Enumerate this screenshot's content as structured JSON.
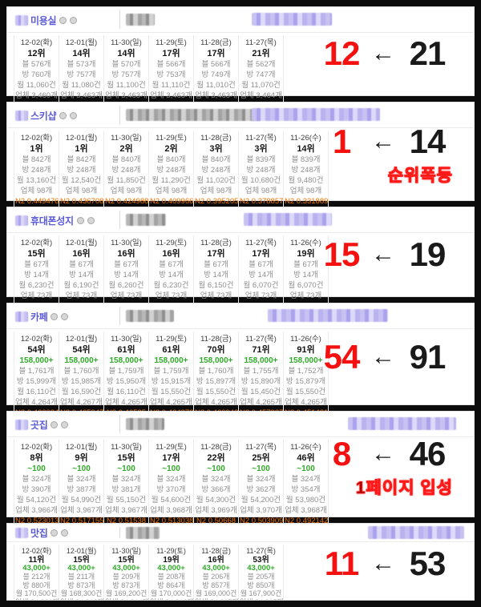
{
  "ui": {
    "arrow_icon": "←",
    "red_color": "#f61111",
    "green_color": "#2fab28",
    "n2_color": "#ef7400",
    "title_color": "#5a5ad9"
  },
  "panels": [
    {
      "title": "미용실",
      "change": {
        "current": "12",
        "previous": "21"
      },
      "note": "",
      "columns": [
        {
          "date": "12-02(화)",
          "rank": "12위",
          "green": "",
          "blog": "블 576개",
          "visitors": "방 760개",
          "monthly": "월 11,060건",
          "companies": "업체 3,460개",
          "n2": "N2 0.426561"
        },
        {
          "date": "12-01(월)",
          "rank": "14위",
          "green": "",
          "blog": "블 573개",
          "visitors": "방 757개",
          "monthly": "월 11,080건",
          "companies": "업체 3,463개",
          "n2": "N2 0.42376"
        },
        {
          "date": "11-30(일)",
          "rank": "14위",
          "green": "",
          "blog": "블 570개",
          "visitors": "방 757개",
          "monthly": "월 11,100건",
          "companies": "업체 3,463개",
          "n2": "N2 0.420637"
        },
        {
          "date": "11-29(토)",
          "rank": "17위",
          "green": "",
          "blog": "블 566개",
          "visitors": "방 753개",
          "monthly": "월 11,110건",
          "companies": "업체 3,463개",
          "n2": "N2 0.416144"
        },
        {
          "date": "11-28(금)",
          "rank": "17위",
          "green": "",
          "blog": "블 566개",
          "visitors": "방 749개",
          "monthly": "월 11,010건",
          "companies": "업체 3,463개",
          "n2": "N2 0.412754"
        },
        {
          "date": "11-27(목)",
          "rank": "21위",
          "green": "",
          "blog": "블 562개",
          "visitors": "방 747개",
          "monthly": "월 11,070건",
          "companies": "업체 3,464개",
          "n2": "N2 0.405847"
        }
      ]
    },
    {
      "title": "스키샵",
      "change": {
        "current": "1",
        "previous": "14"
      },
      "note": "순위폭등",
      "columns": [
        {
          "date": "12-02(화)",
          "rank": "1위",
          "green": "",
          "blog": "블 842개",
          "visitors": "방 248개",
          "monthly": "월 13,160건",
          "companies": "업체 98개",
          "n2": "N2 0.449476"
        },
        {
          "date": "12-01(월)",
          "rank": "1위",
          "green": "",
          "blog": "블 842개",
          "visitors": "방 248개",
          "monthly": "월 12,540건",
          "companies": "업체 98개",
          "n2": "N2 0.436708"
        },
        {
          "date": "11-30(일)",
          "rank": "2위",
          "green": "",
          "blog": "블 840개",
          "visitors": "방 248개",
          "monthly": "월 11,850건",
          "companies": "업체 98개",
          "n2": "N2 0.424988"
        },
        {
          "date": "11-29(토)",
          "rank": "2위",
          "green": "",
          "blog": "블 840개",
          "visitors": "방 248개",
          "monthly": "월 11,290건",
          "companies": "업체 98개",
          "n2": "N2 0.409966"
        },
        {
          "date": "11-28(금)",
          "rank": "3위",
          "green": "",
          "blog": "블 840개",
          "visitors": "방 248개",
          "monthly": "월 11,020건",
          "companies": "업체 98개",
          "n2": "N2 0.395205"
        },
        {
          "date": "11-27(목)",
          "rank": "3위",
          "green": "",
          "blog": "블 839개",
          "visitors": "방 248개",
          "monthly": "월 10,680건",
          "companies": "업체 98개",
          "n2": "N2 0.378857"
        },
        {
          "date": "11-26(수)",
          "rank": "14위",
          "green": "",
          "blog": "블 839개",
          "visitors": "방 248개",
          "monthly": "월 9,480건",
          "companies": "업체 98개",
          "n2": "N2 0.331889"
        }
      ]
    },
    {
      "title": "휴대폰성지",
      "change": {
        "current": "15",
        "previous": "19"
      },
      "note": "",
      "columns": [
        {
          "date": "12-02(화)",
          "rank": "15위",
          "green": "",
          "blog": "블 67개",
          "visitors": "방 14개",
          "monthly": "월 6,230건",
          "companies": "업체 73개",
          "n2": "N2 0.225253"
        },
        {
          "date": "12-01(월)",
          "rank": "16위",
          "green": "",
          "blog": "블 67개",
          "visitors": "방 14개",
          "monthly": "월 6,190건",
          "companies": "업체 73개",
          "n2": "N2 0.219472"
        },
        {
          "date": "11-30(일)",
          "rank": "16위",
          "green": "",
          "blog": "블 67개",
          "visitors": "방 14개",
          "monthly": "월 6,260건",
          "companies": "업체 73개",
          "n2": "N2 0.219472"
        },
        {
          "date": "11-29(토)",
          "rank": "16위",
          "green": "",
          "blog": "블 67개",
          "visitors": "방 14개",
          "monthly": "월 6,230건",
          "companies": "업체 73개",
          "n2": "N2 0.222271"
        },
        {
          "date": "11-28(금)",
          "rank": "17위",
          "green": "",
          "blog": "블 67개",
          "visitors": "방 14개",
          "monthly": "월 6,150건",
          "companies": "업체 73개",
          "n2": "N2 0.222239"
        },
        {
          "date": "11-27(목)",
          "rank": "17위",
          "green": "",
          "blog": "블 67개",
          "visitors": "방 14개",
          "monthly": "월 6,070건",
          "companies": "업체 73개",
          "n2": "N2 0.221428"
        },
        {
          "date": "11-26(수)",
          "rank": "19위",
          "green": "",
          "blog": "블 67개",
          "visitors": "방 14개",
          "monthly": "월 6,070건",
          "companies": "업체 73개",
          "n2": "N2 0.220964"
        }
      ]
    },
    {
      "title": "카페",
      "change": {
        "current": "54",
        "previous": "91"
      },
      "note": "",
      "columns": [
        {
          "date": "12-02(화)",
          "rank": "54위",
          "green": "158,000+",
          "blog": "블 1,761개",
          "visitors": "방 15,999개",
          "monthly": "월 16,110건",
          "companies": "업체 4,264개",
          "n2": "N2 0.466094"
        },
        {
          "date": "12-01(월)",
          "rank": "54위",
          "green": "158,000+",
          "blog": "블 1,760개",
          "visitors": "방 15,985개",
          "monthly": "월 16,590건",
          "companies": "업체 4,267개",
          "n2": "N2 0.465947"
        },
        {
          "date": "11-30(일)",
          "rank": "61위",
          "green": "158,000+",
          "blog": "블 1,759개",
          "visitors": "방 15,950개",
          "monthly": "월 16,110건",
          "companies": "업체 4,265개",
          "n2": "N2 0.46525"
        },
        {
          "date": "11-29(토)",
          "rank": "61위",
          "green": "158,000+",
          "blog": "블 1,759개",
          "visitors": "방 15,915개",
          "monthly": "월 15,550건",
          "companies": "업체 4,265개",
          "n2": "N2 0.464373"
        },
        {
          "date": "11-28(금)",
          "rank": "70위",
          "green": "158,000+",
          "blog": "블 1,760개",
          "visitors": "방 15,897개",
          "monthly": "월 15,550건",
          "companies": "업체 4,265개",
          "n2": "N2 0.460943"
        },
        {
          "date": "11-27(목)",
          "rank": "71위",
          "green": "158,000+",
          "blog": "블 1,755개",
          "visitors": "방 15,890개",
          "monthly": "월 15,450건",
          "companies": "업체 4,265개",
          "n2": "N2 0.457937"
        },
        {
          "date": "11-26(수)",
          "rank": "91위",
          "green": "158,000+",
          "blog": "블 1,752개",
          "visitors": "방 15,879개",
          "monthly": "월 15,550건",
          "companies": "업체 4,265개",
          "n2": "N2 0.451431"
        }
      ]
    },
    {
      "title": "곳집",
      "change": {
        "current": "8",
        "previous": "46"
      },
      "note": "1페이지 입성",
      "columns": [
        {
          "date": "12-02(화)",
          "rank": "8위",
          "green": "~100",
          "blog": "블 324개",
          "visitors": "방 390개",
          "monthly": "월 54,120건",
          "companies": "업체 3,966개",
          "n2": "N2 0.523013"
        },
        {
          "date": "12-01(월)",
          "rank": "9위",
          "green": "~100",
          "blog": "블 324개",
          "visitors": "방 387개",
          "monthly": "월 54,990건",
          "companies": "업체 3,967개",
          "n2": "N2 0.517155"
        },
        {
          "date": "11-30(일)",
          "rank": "15위",
          "green": "~100",
          "blog": "블 324개",
          "visitors": "방 381개",
          "monthly": "월 55,150건",
          "companies": "업체 3,967개",
          "n2": "N2 0.51538"
        },
        {
          "date": "11-29(토)",
          "rank": "17위",
          "green": "~100",
          "blog": "블 324개",
          "visitors": "방 370개",
          "monthly": "월 54,600건",
          "companies": "업체 3,968개",
          "n2": "N2 0.513038"
        },
        {
          "date": "11-28(금)",
          "rank": "22위",
          "green": "~100",
          "blog": "블 324개",
          "visitors": "방 366개",
          "monthly": "월 54,300건",
          "companies": "업체 3,969개",
          "n2": "N2 0.50668"
        },
        {
          "date": "11-27(목)",
          "rank": "25위",
          "green": "~100",
          "blog": "블 324개",
          "visitors": "방 362개",
          "monthly": "월 54,200건",
          "companies": "업체 3,970개",
          "n2": "N2 0.503909"
        },
        {
          "date": "11-26(수)",
          "rank": "46위",
          "green": "~100",
          "blog": "블 324개",
          "visitors": "방 354개",
          "monthly": "월 53,980건",
          "companies": "업체 3,968개",
          "n2": "N2 0.492142"
        }
      ]
    },
    {
      "title": "맛집",
      "change": {
        "current": "11",
        "previous": "53"
      },
      "note": "",
      "columns": [
        {
          "date": "12-02(화)",
          "rank": "11위",
          "green": "43,000+",
          "blog": "블 212개",
          "visitors": "방 880개",
          "monthly": "월 170,500건",
          "companies": "업체 34,901개",
          "n2": "N2 0.550622"
        },
        {
          "date": "12-01(월)",
          "rank": "15위",
          "green": "43,000+",
          "blog": "블 211개",
          "visitors": "방 873개",
          "monthly": "월 168,300건",
          "companies": "업체 34,912개",
          "n2": "N2 0.549034"
        },
        {
          "date": "11-30(일)",
          "rank": "15위",
          "green": "43,000+",
          "blog": "블 209개",
          "visitors": "방 873개",
          "monthly": "월 169,200건",
          "companies": "업체 34,914개",
          "n2": "N2 0.547908"
        },
        {
          "date": "11-29(토)",
          "rank": "19위",
          "green": "43,000+",
          "blog": "블 208개",
          "visitors": "방 864개",
          "monthly": "월 170,000건",
          "companies": "업체 34,916개",
          "n2": "N2 0.545644"
        },
        {
          "date": "11-28(금)",
          "rank": "16위",
          "green": "43,000+",
          "blog": "블 206개",
          "visitors": "방 857개",
          "monthly": "월 169,000건",
          "companies": "업체 34,917개",
          "n2": "N2 0.545224"
        },
        {
          "date": "11-27(목)",
          "rank": "53위",
          "green": "43,000+",
          "blog": "블 205개",
          "visitors": "방 850개",
          "monthly": "월 167,900건",
          "companies": "업체 34,915개",
          "n2": "N2 0.535485"
        }
      ]
    }
  ]
}
